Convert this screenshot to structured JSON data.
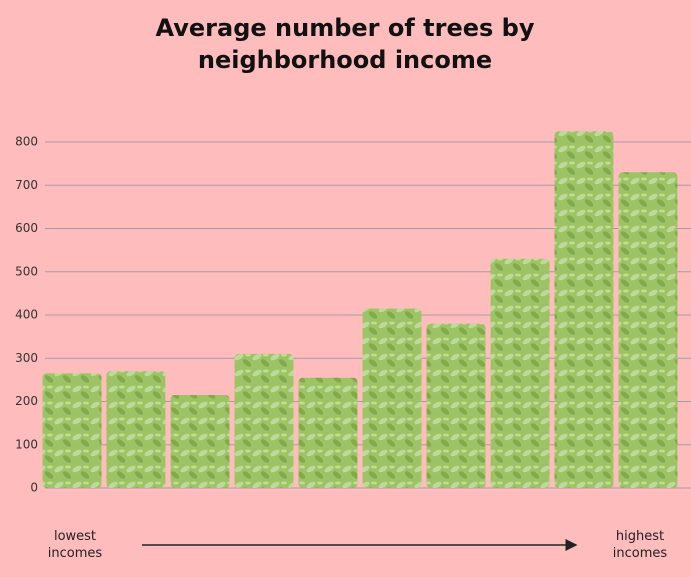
{
  "chart_data": {
    "type": "bar",
    "title": "Average number of trees by neighborhood income",
    "categories": [
      null,
      null,
      null,
      null,
      null,
      null,
      null,
      null,
      null,
      null
    ],
    "values": [
      265,
      270,
      215,
      310,
      255,
      415,
      380,
      530,
      825,
      730
    ],
    "color": "#9cc464",
    "ylim": [
      0,
      800
    ],
    "yticks": [
      0,
      100,
      200,
      300,
      400,
      500,
      600,
      700,
      800
    ],
    "grid": true,
    "annotations": [
      "lowest incomes",
      "highest incomes"
    ]
  }
}
